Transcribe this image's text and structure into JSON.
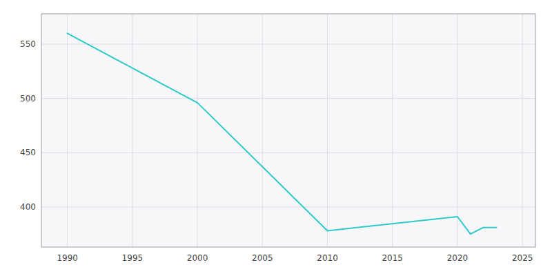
{
  "chart_data": {
    "type": "line",
    "x": [
      1990,
      2000,
      2010,
      2020,
      2021,
      2022,
      2023
    ],
    "values": [
      560,
      496,
      378,
      391,
      375,
      381,
      381
    ],
    "color": "#2ec8c8",
    "xlim": [
      1988,
      2026
    ],
    "ylim": [
      363,
      578
    ],
    "xticks": [
      1990,
      1995,
      2000,
      2005,
      2010,
      2015,
      2020,
      2025
    ],
    "yticks": [
      400,
      450,
      500,
      550
    ],
    "grid": true
  }
}
